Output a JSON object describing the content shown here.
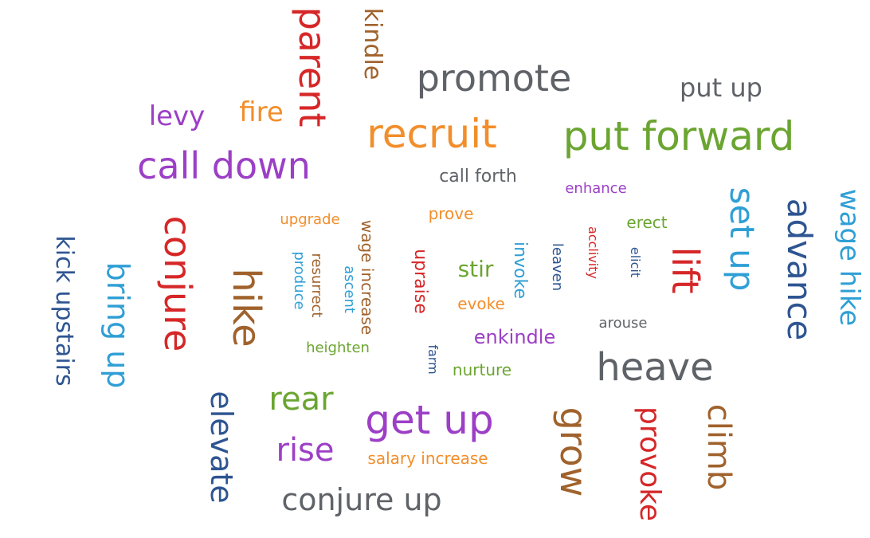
{
  "palette": {
    "red": "#d62728",
    "orange": "#f28e2b",
    "gray": "#5f6368",
    "green": "#6ba531",
    "purple": "#9c3fc6",
    "blue": "#2e5591",
    "cyan": "#2f9fd5",
    "brown": "#a0622c"
  },
  "words": [
    {
      "text": "parent",
      "color": "red"
    },
    {
      "text": "kindle",
      "color": "brown"
    },
    {
      "text": "promote",
      "color": "gray"
    },
    {
      "text": "put up",
      "color": "gray"
    },
    {
      "text": "levy",
      "color": "purple"
    },
    {
      "text": "fire",
      "color": "orange"
    },
    {
      "text": "recruit",
      "color": "orange"
    },
    {
      "text": "put forward",
      "color": "green"
    },
    {
      "text": "call down",
      "color": "purple"
    },
    {
      "text": "call forth",
      "color": "gray"
    },
    {
      "text": "enhance",
      "color": "purple"
    },
    {
      "text": "wage hike",
      "color": "cyan"
    },
    {
      "text": "set up",
      "color": "cyan"
    },
    {
      "text": "advance",
      "color": "blue"
    },
    {
      "text": "kick upstairs",
      "color": "blue"
    },
    {
      "text": "bring up",
      "color": "cyan"
    },
    {
      "text": "conjure",
      "color": "red"
    },
    {
      "text": "upgrade",
      "color": "orange"
    },
    {
      "text": "prove",
      "color": "orange"
    },
    {
      "text": "erect",
      "color": "green"
    },
    {
      "text": "hike",
      "color": "brown"
    },
    {
      "text": "produce",
      "color": "cyan"
    },
    {
      "text": "resurrect",
      "color": "brown"
    },
    {
      "text": "ascent",
      "color": "cyan"
    },
    {
      "text": "wage increase",
      "color": "brown"
    },
    {
      "text": "upraise",
      "color": "red"
    },
    {
      "text": "stir",
      "color": "green"
    },
    {
      "text": "invoke",
      "color": "cyan"
    },
    {
      "text": "leaven",
      "color": "blue"
    },
    {
      "text": "acclivity",
      "color": "red"
    },
    {
      "text": "elicit",
      "color": "blue"
    },
    {
      "text": "lift",
      "color": "red"
    },
    {
      "text": "evoke",
      "color": "orange"
    },
    {
      "text": "arouse",
      "color": "gray"
    },
    {
      "text": "enkindle",
      "color": "purple"
    },
    {
      "text": "heighten",
      "color": "green"
    },
    {
      "text": "farm",
      "color": "blue"
    },
    {
      "text": "nurture",
      "color": "green"
    },
    {
      "text": "heave",
      "color": "gray"
    },
    {
      "text": "rear",
      "color": "green"
    },
    {
      "text": "get up",
      "color": "purple"
    },
    {
      "text": "elevate",
      "color": "blue"
    },
    {
      "text": "grow",
      "color": "brown"
    },
    {
      "text": "provoke",
      "color": "red"
    },
    {
      "text": "climb",
      "color": "brown"
    },
    {
      "text": "rise",
      "color": "purple"
    },
    {
      "text": "salary increase",
      "color": "orange"
    },
    {
      "text": "conjure up",
      "color": "gray"
    }
  ]
}
